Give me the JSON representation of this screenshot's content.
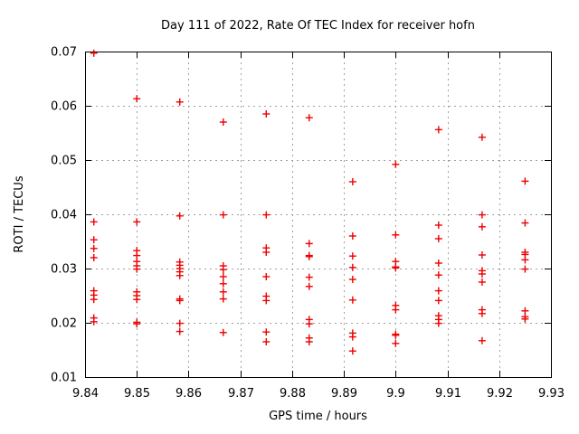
{
  "title": "Day 111 of 2022, Rate Of TEC Index for receiver hofn",
  "chart_data": {
    "type": "scatter",
    "title": "Day 111 of 2022, Rate Of TEC Index for receiver hofn",
    "xlabel": "GPS time / hours",
    "ylabel": "ROTI / TECUs",
    "xlim": [
      9.84,
      9.93
    ],
    "ylim": [
      0.01,
      0.07
    ],
    "xticks": [
      9.84,
      9.85,
      9.86,
      9.87,
      9.88,
      9.89,
      9.9,
      9.91,
      9.92,
      9.93
    ],
    "xtick_labels": [
      "9.84",
      "9.85",
      "9.86",
      "9.87",
      "9.88",
      "9.89",
      "9.9",
      "9.91",
      "9.92",
      "9.93"
    ],
    "yticks": [
      0.01,
      0.02,
      0.03,
      0.04,
      0.05,
      0.06,
      0.07
    ],
    "ytick_labels": [
      "0.01",
      "0.02",
      "0.03",
      "0.04",
      "0.05",
      "0.06",
      "0.07"
    ],
    "grid": true,
    "grid_style": "dashed",
    "grid_color": "#a0a0a0",
    "border_color": "#000000",
    "legend": false,
    "marker": "plus",
    "marker_color": "#ee0000",
    "series": [
      {
        "name": "ROTI",
        "points": [
          [
            9.8417,
            0.0697
          ],
          [
            9.8417,
            0.0386
          ],
          [
            9.8417,
            0.0353
          ],
          [
            9.8417,
            0.0337
          ],
          [
            9.8417,
            0.032
          ],
          [
            9.8417,
            0.0259
          ],
          [
            9.8417,
            0.0251
          ],
          [
            9.8417,
            0.0243
          ],
          [
            9.8417,
            0.0209
          ],
          [
            9.8417,
            0.0202
          ],
          [
            9.85,
            0.0613
          ],
          [
            9.85,
            0.0386
          ],
          [
            9.85,
            0.0333
          ],
          [
            9.85,
            0.0324
          ],
          [
            9.85,
            0.0313
          ],
          [
            9.85,
            0.0305
          ],
          [
            9.85,
            0.0299
          ],
          [
            9.85,
            0.0257
          ],
          [
            9.85,
            0.025
          ],
          [
            9.85,
            0.0243
          ],
          [
            9.85,
            0.0201
          ],
          [
            9.85,
            0.0198
          ],
          [
            9.8583,
            0.0607
          ],
          [
            9.8583,
            0.0397
          ],
          [
            9.8583,
            0.0312
          ],
          [
            9.8583,
            0.0306
          ],
          [
            9.8583,
            0.03
          ],
          [
            9.8583,
            0.0294
          ],
          [
            9.8583,
            0.0287
          ],
          [
            9.8583,
            0.0244
          ],
          [
            9.8583,
            0.0241
          ],
          [
            9.8583,
            0.0199
          ],
          [
            9.8583,
            0.0184
          ],
          [
            9.8667,
            0.057
          ],
          [
            9.8667,
            0.0399
          ],
          [
            9.8667,
            0.0305
          ],
          [
            9.8667,
            0.0298
          ],
          [
            9.8667,
            0.0285
          ],
          [
            9.8667,
            0.0272
          ],
          [
            9.8667,
            0.0257
          ],
          [
            9.8667,
            0.0244
          ],
          [
            9.8667,
            0.0182
          ],
          [
            9.875,
            0.0585
          ],
          [
            9.875,
            0.0399
          ],
          [
            9.875,
            0.0338
          ],
          [
            9.875,
            0.033
          ],
          [
            9.875,
            0.0285
          ],
          [
            9.875,
            0.0249
          ],
          [
            9.875,
            0.0241
          ],
          [
            9.875,
            0.0183
          ],
          [
            9.875,
            0.0165
          ],
          [
            9.8833,
            0.0578
          ],
          [
            9.8833,
            0.0346
          ],
          [
            9.8833,
            0.0324
          ],
          [
            9.8833,
            0.0322
          ],
          [
            9.8833,
            0.0284
          ],
          [
            9.8833,
            0.0267
          ],
          [
            9.8833,
            0.0206
          ],
          [
            9.8833,
            0.0198
          ],
          [
            9.8833,
            0.0172
          ],
          [
            9.8833,
            0.0165
          ],
          [
            9.8917,
            0.046
          ],
          [
            9.8917,
            0.036
          ],
          [
            9.8917,
            0.0323
          ],
          [
            9.8917,
            0.0302
          ],
          [
            9.8917,
            0.028
          ],
          [
            9.8917,
            0.0242
          ],
          [
            9.8917,
            0.0181
          ],
          [
            9.8917,
            0.0174
          ],
          [
            9.8917,
            0.0148
          ],
          [
            9.9,
            0.0492
          ],
          [
            9.9,
            0.0362
          ],
          [
            9.9,
            0.0313
          ],
          [
            9.9,
            0.0303
          ],
          [
            9.9,
            0.0301
          ],
          [
            9.9,
            0.0232
          ],
          [
            9.9,
            0.0224
          ],
          [
            9.9,
            0.0179
          ],
          [
            9.9,
            0.0177
          ],
          [
            9.9,
            0.0162
          ],
          [
            9.9083,
            0.0556
          ],
          [
            9.9083,
            0.038
          ],
          [
            9.9083,
            0.0355
          ],
          [
            9.9083,
            0.031
          ],
          [
            9.9083,
            0.0288
          ],
          [
            9.9083,
            0.0259
          ],
          [
            9.9083,
            0.0241
          ],
          [
            9.9083,
            0.0213
          ],
          [
            9.9083,
            0.0206
          ],
          [
            9.9083,
            0.0199
          ],
          [
            9.9167,
            0.0542
          ],
          [
            9.9167,
            0.0399
          ],
          [
            9.9167,
            0.0377
          ],
          [
            9.9167,
            0.0325
          ],
          [
            9.9167,
            0.0296
          ],
          [
            9.9167,
            0.029
          ],
          [
            9.9167,
            0.0275
          ],
          [
            9.9167,
            0.0224
          ],
          [
            9.9167,
            0.0217
          ],
          [
            9.9167,
            0.0167
          ],
          [
            9.925,
            0.0461
          ],
          [
            9.925,
            0.0384
          ],
          [
            9.925,
            0.033
          ],
          [
            9.925,
            0.0326
          ],
          [
            9.925,
            0.0316
          ],
          [
            9.925,
            0.0299
          ],
          [
            9.925,
            0.0222
          ],
          [
            9.925,
            0.0211
          ],
          [
            9.925,
            0.0207
          ]
        ]
      }
    ]
  }
}
